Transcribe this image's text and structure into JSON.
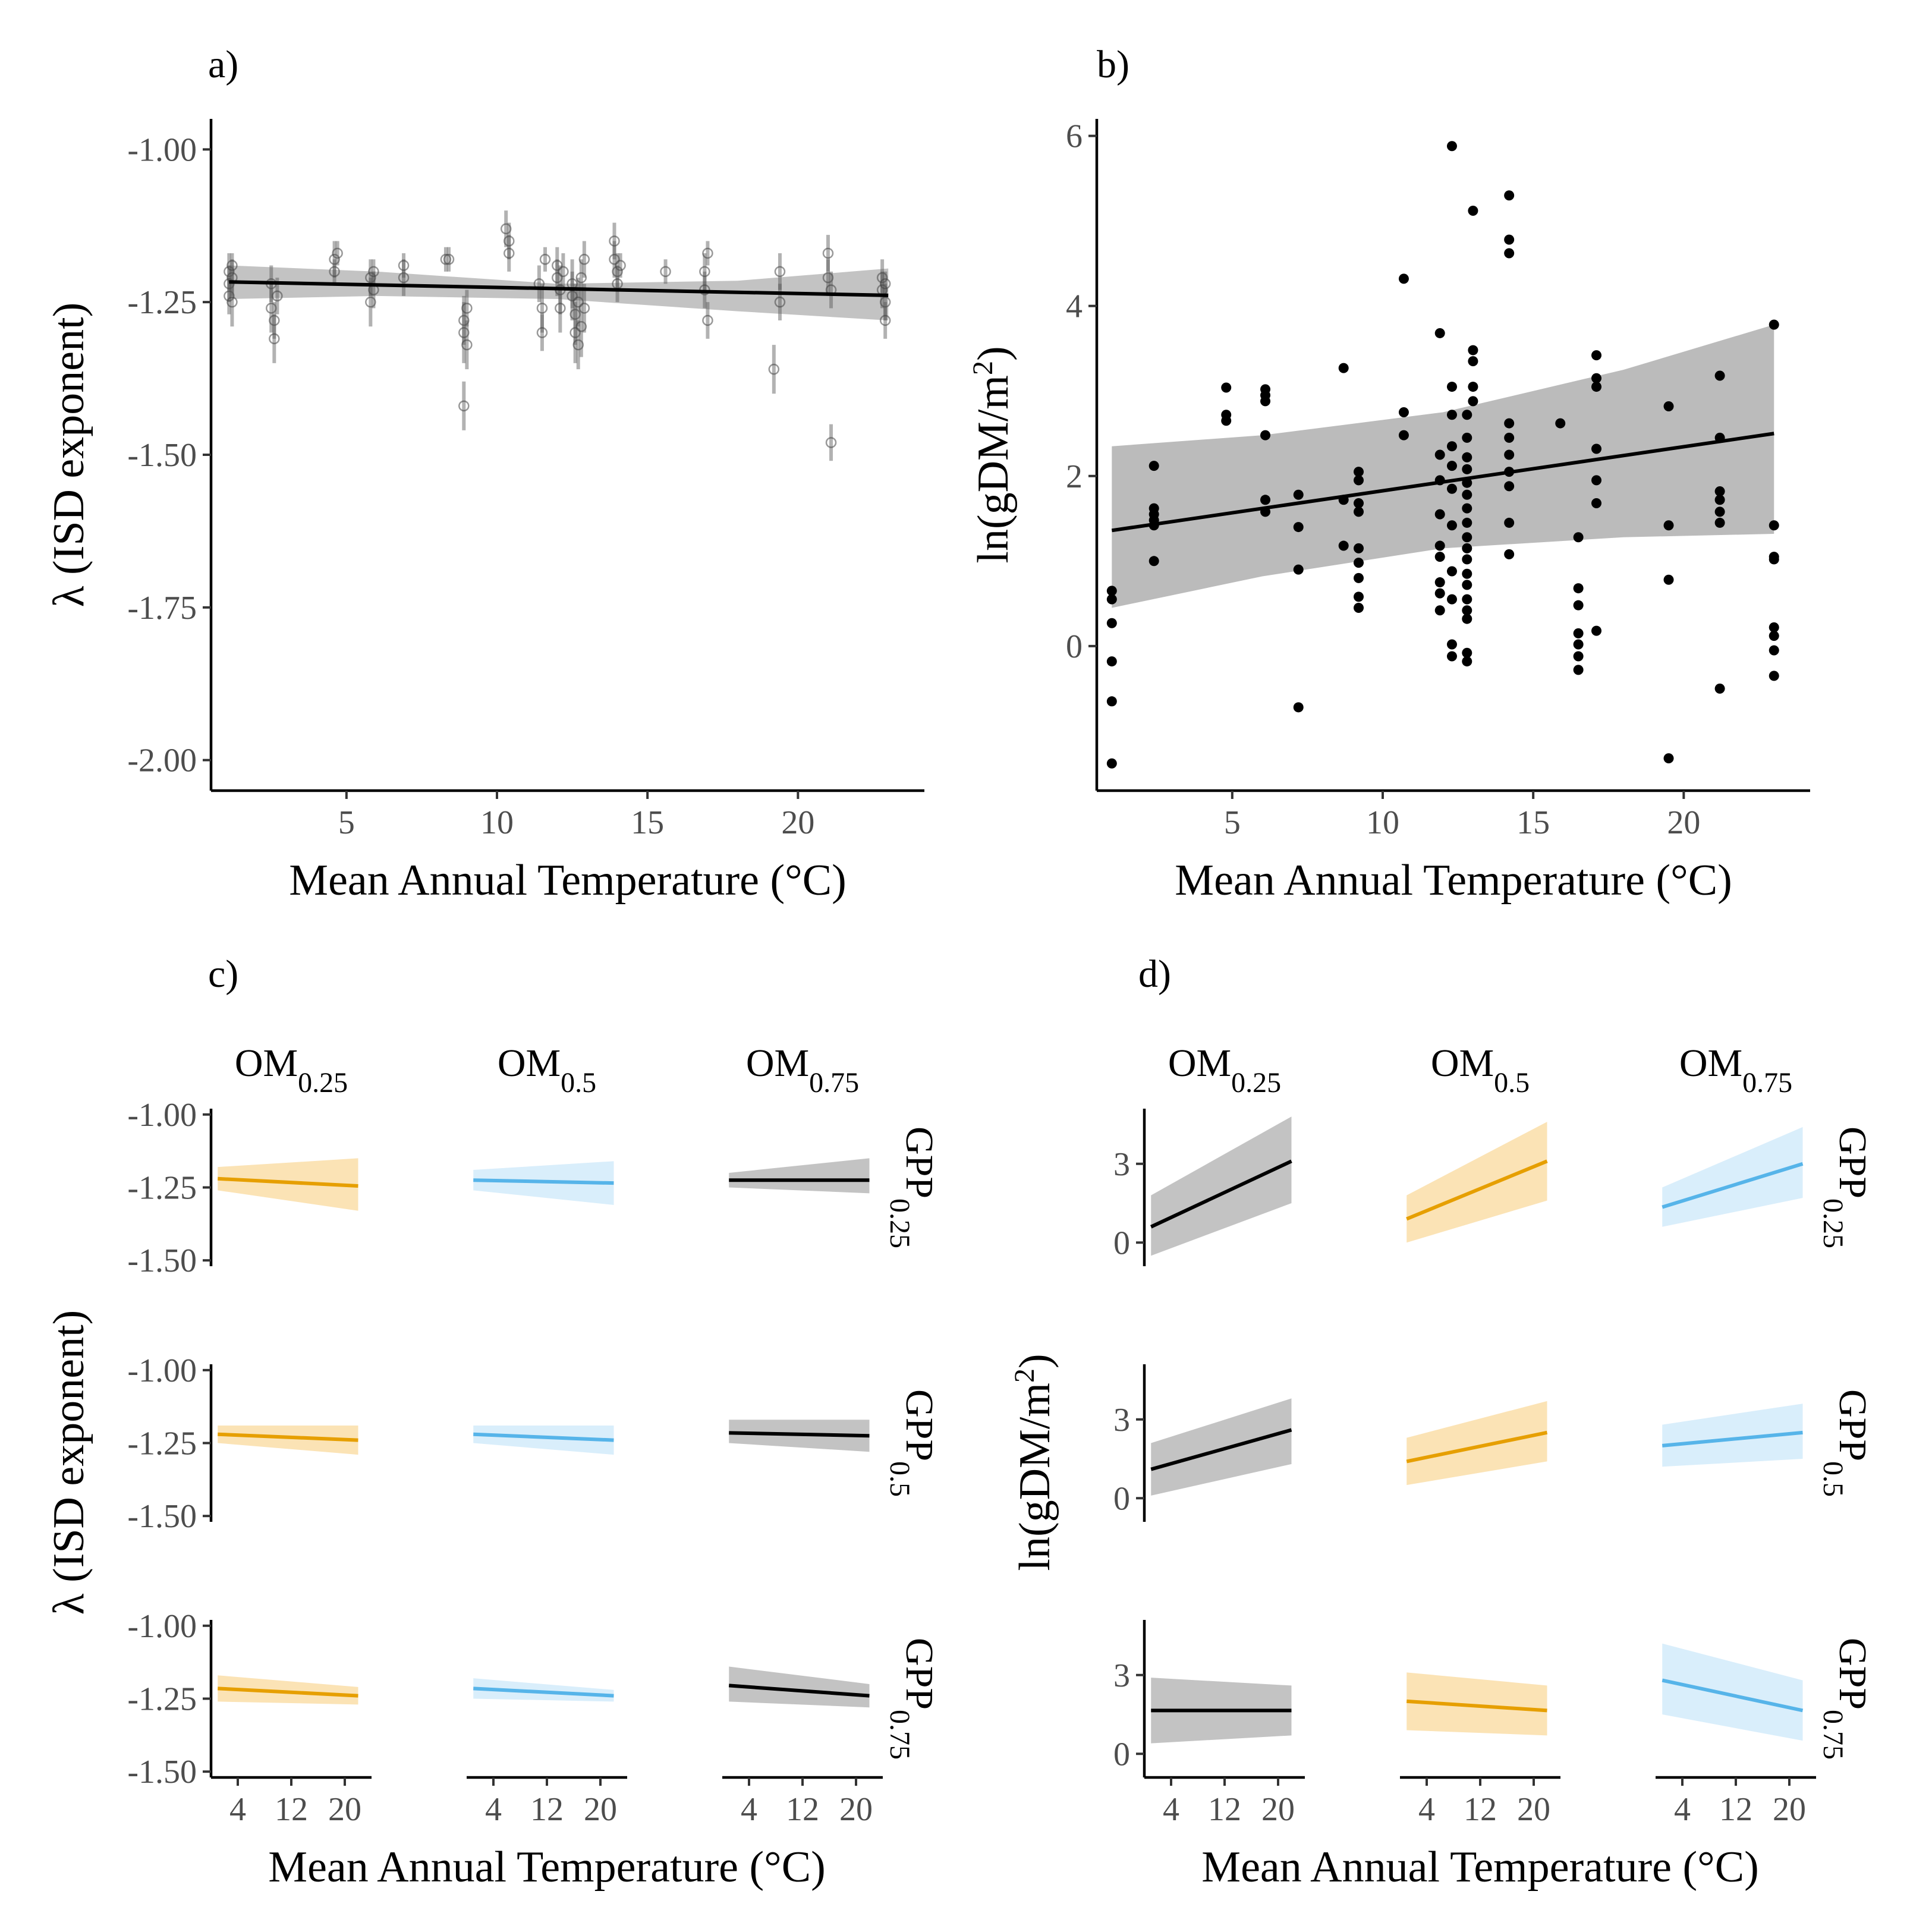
{
  "colors": {
    "black": "#000000",
    "orange": "#E69F00",
    "blue": "#56B4E9",
    "band_a": "#bdbdbd",
    "band_b": "#9e9e9e"
  },
  "panel_labels": [
    "a)",
    "b)",
    "c)",
    "d)"
  ],
  "temp_axis_title": "Mean Annual Temperature (°C)",
  "lambda_axis_title": "λ (ISD exponent)",
  "biomass_axis_title": "ln(gDM/m²)",
  "chart_data": [
    {
      "panel": "a)",
      "type": "scatter",
      "xlabel": "Mean Annual Temperature (°C)",
      "ylabel": "λ (ISD exponent)",
      "xlim": [
        0.5,
        24.2
      ],
      "ylim": [
        -2.05,
        -0.95
      ],
      "x_ticks": [
        5,
        10,
        15,
        20
      ],
      "y_ticks": [
        -1.0,
        -1.25,
        -1.5,
        -1.75,
        -2.0
      ],
      "y_tick_labels": [
        "-1.00",
        "-1.25",
        "-1.50",
        "-1.75",
        "-2.00"
      ],
      "fit_line": [
        [
          1.1,
          -1.217
        ],
        [
          23,
          -1.239
        ]
      ],
      "fit_band": {
        "x": [
          1.1,
          6,
          12,
          18,
          23
        ],
        "lower": [
          -1.245,
          -1.24,
          -1.245,
          -1.265,
          -1.28
        ],
        "upper": [
          -1.19,
          -1.2,
          -1.22,
          -1.215,
          -1.195
        ]
      },
      "points": [
        [
          1.1,
          -1.2,
          0.03
        ],
        [
          1.1,
          -1.22,
          0.03
        ],
        [
          1.1,
          -1.24,
          0.03
        ],
        [
          1.2,
          -1.21,
          0.03
        ],
        [
          1.2,
          -1.25,
          0.04
        ],
        [
          1.2,
          -1.19,
          0.02
        ],
        [
          2.5,
          -1.22,
          0.03
        ],
        [
          2.5,
          -1.26,
          0.04
        ],
        [
          2.6,
          -1.28,
          0.03
        ],
        [
          2.6,
          -1.31,
          0.04
        ],
        [
          2.7,
          -1.24,
          0.03
        ],
        [
          4.6,
          -1.18,
          0.03
        ],
        [
          4.6,
          -1.2,
          0.02
        ],
        [
          4.7,
          -1.17,
          0.02
        ],
        [
          5.8,
          -1.21,
          0.03
        ],
        [
          5.8,
          -1.25,
          0.04
        ],
        [
          5.9,
          -1.23,
          0.03
        ],
        [
          5.9,
          -1.2,
          0.02
        ],
        [
          6.9,
          -1.21,
          0.03
        ],
        [
          6.9,
          -1.19,
          0.02
        ],
        [
          8.3,
          -1.18,
          0.02
        ],
        [
          8.4,
          -1.18,
          0.02
        ],
        [
          8.9,
          -1.28,
          0.04
        ],
        [
          8.9,
          -1.3,
          0.05
        ],
        [
          9.0,
          -1.32,
          0.04
        ],
        [
          8.9,
          -1.42,
          0.04
        ],
        [
          9.0,
          -1.26,
          0.03
        ],
        [
          10.3,
          -1.13,
          0.03
        ],
        [
          10.4,
          -1.15,
          0.03
        ],
        [
          10.4,
          -1.17,
          0.03
        ],
        [
          11.4,
          -1.22,
          0.03
        ],
        [
          11.5,
          -1.26,
          0.04
        ],
        [
          11.5,
          -1.3,
          0.03
        ],
        [
          11.6,
          -1.18,
          0.02
        ],
        [
          12.0,
          -1.19,
          0.03
        ],
        [
          12.0,
          -1.21,
          0.03
        ],
        [
          12.1,
          -1.23,
          0.04
        ],
        [
          12.1,
          -1.26,
          0.04
        ],
        [
          12.2,
          -1.2,
          0.03
        ],
        [
          12.5,
          -1.22,
          0.04
        ],
        [
          12.5,
          -1.24,
          0.04
        ],
        [
          12.6,
          -1.27,
          0.05
        ],
        [
          12.6,
          -1.3,
          0.05
        ],
        [
          12.7,
          -1.32,
          0.04
        ],
        [
          12.7,
          -1.25,
          0.04
        ],
        [
          12.8,
          -1.21,
          0.03
        ],
        [
          12.8,
          -1.29,
          0.05
        ],
        [
          12.9,
          -1.26,
          0.04
        ],
        [
          12.9,
          -1.18,
          0.03
        ],
        [
          13.9,
          -1.15,
          0.03
        ],
        [
          13.9,
          -1.18,
          0.03
        ],
        [
          14.0,
          -1.2,
          0.03
        ],
        [
          14.0,
          -1.22,
          0.03
        ],
        [
          14.1,
          -1.19,
          0.02
        ],
        [
          15.6,
          -1.2,
          0.02
        ],
        [
          16.9,
          -1.2,
          0.03
        ],
        [
          16.9,
          -1.23,
          0.03
        ],
        [
          17.0,
          -1.28,
          0.03
        ],
        [
          17.0,
          -1.17,
          0.02
        ],
        [
          19.2,
          -1.36,
          0.04
        ],
        [
          19.4,
          -1.2,
          0.03
        ],
        [
          19.4,
          -1.25,
          0.03
        ],
        [
          21.0,
          -1.17,
          0.03
        ],
        [
          21.0,
          -1.21,
          0.03
        ],
        [
          21.1,
          -1.48,
          0.03
        ],
        [
          21.1,
          -1.23,
          0.03
        ],
        [
          22.8,
          -1.21,
          0.03
        ],
        [
          22.8,
          -1.23,
          0.03
        ],
        [
          22.9,
          -1.25,
          0.03
        ],
        [
          22.9,
          -1.28,
          0.03
        ],
        [
          22.9,
          -1.22,
          0.02
        ]
      ]
    },
    {
      "panel": "b)",
      "type": "scatter",
      "xlabel": "Mean Annual Temperature (°C)",
      "ylabel": "ln(gDM/m²)",
      "xlim": [
        0.5,
        24.2
      ],
      "ylim": [
        -1.7,
        6.2
      ],
      "x_ticks": [
        5,
        10,
        15,
        20
      ],
      "y_ticks": [
        0,
        2,
        4,
        6
      ],
      "y_tick_labels": [
        "0",
        "2",
        "4",
        "6"
      ],
      "fit_line": [
        [
          1.0,
          1.36
        ],
        [
          23.0,
          2.5
        ]
      ],
      "fit_band": {
        "x": [
          1.0,
          6,
          12,
          18,
          23
        ],
        "lower": [
          0.45,
          0.82,
          1.15,
          1.28,
          1.32
        ],
        "upper": [
          2.35,
          2.48,
          2.75,
          3.25,
          3.78
        ]
      },
      "points": [
        [
          1.0,
          -1.38
        ],
        [
          1.0,
          -0.65
        ],
        [
          1.0,
          -0.18
        ],
        [
          1.0,
          0.27
        ],
        [
          1.0,
          0.55
        ],
        [
          1.0,
          0.65
        ],
        [
          2.4,
          1.0
        ],
        [
          2.4,
          1.42
        ],
        [
          2.4,
          1.48
        ],
        [
          2.4,
          1.55
        ],
        [
          2.4,
          1.62
        ],
        [
          2.4,
          2.12
        ],
        [
          4.8,
          2.65
        ],
        [
          4.8,
          2.72
        ],
        [
          4.8,
          3.04
        ],
        [
          6.1,
          1.58
        ],
        [
          6.1,
          1.72
        ],
        [
          6.1,
          2.48
        ],
        [
          6.1,
          2.88
        ],
        [
          6.1,
          2.95
        ],
        [
          6.1,
          3.02
        ],
        [
          7.2,
          -0.72
        ],
        [
          7.2,
          0.9
        ],
        [
          7.2,
          1.4
        ],
        [
          7.2,
          1.78
        ],
        [
          8.7,
          1.18
        ],
        [
          8.7,
          1.72
        ],
        [
          8.7,
          3.27
        ],
        [
          9.2,
          0.45
        ],
        [
          9.2,
          0.58
        ],
        [
          9.2,
          0.8
        ],
        [
          9.2,
          0.98
        ],
        [
          9.2,
          1.15
        ],
        [
          9.2,
          1.58
        ],
        [
          9.2,
          1.68
        ],
        [
          9.2,
          1.95
        ],
        [
          9.2,
          2.05
        ],
        [
          10.7,
          2.48
        ],
        [
          10.7,
          2.75
        ],
        [
          10.7,
          4.32
        ],
        [
          11.9,
          0.42
        ],
        [
          11.9,
          0.62
        ],
        [
          11.9,
          0.75
        ],
        [
          11.9,
          1.05
        ],
        [
          11.9,
          1.18
        ],
        [
          11.9,
          1.55
        ],
        [
          11.9,
          1.95
        ],
        [
          11.9,
          2.25
        ],
        [
          11.9,
          3.68
        ],
        [
          12.3,
          -0.12
        ],
        [
          12.3,
          0.02
        ],
        [
          12.3,
          0.55
        ],
        [
          12.3,
          0.88
        ],
        [
          12.3,
          1.42
        ],
        [
          12.3,
          1.85
        ],
        [
          12.3,
          2.12
        ],
        [
          12.3,
          2.35
        ],
        [
          12.3,
          2.72
        ],
        [
          12.3,
          3.05
        ],
        [
          12.3,
          5.88
        ],
        [
          12.8,
          -0.18
        ],
        [
          12.8,
          -0.08
        ],
        [
          12.8,
          0.32
        ],
        [
          12.8,
          0.42
        ],
        [
          12.8,
          0.55
        ],
        [
          12.8,
          0.72
        ],
        [
          12.8,
          0.85
        ],
        [
          12.8,
          1.02
        ],
        [
          12.8,
          1.15
        ],
        [
          12.8,
          1.28
        ],
        [
          12.8,
          1.45
        ],
        [
          12.8,
          1.62
        ],
        [
          12.8,
          1.78
        ],
        [
          12.8,
          1.92
        ],
        [
          12.8,
          2.08
        ],
        [
          12.8,
          2.22
        ],
        [
          12.8,
          2.45
        ],
        [
          12.8,
          2.72
        ],
        [
          13.0,
          2.88
        ],
        [
          13.0,
          3.05
        ],
        [
          13.0,
          3.35
        ],
        [
          13.0,
          3.48
        ],
        [
          13.0,
          5.12
        ],
        [
          14.2,
          1.08
        ],
        [
          14.2,
          1.45
        ],
        [
          14.2,
          1.88
        ],
        [
          14.2,
          2.05
        ],
        [
          14.2,
          2.25
        ],
        [
          14.2,
          2.45
        ],
        [
          14.2,
          2.62
        ],
        [
          14.2,
          4.62
        ],
        [
          14.2,
          4.78
        ],
        [
          14.2,
          5.3
        ],
        [
          15.9,
          2.62
        ],
        [
          16.5,
          -0.28
        ],
        [
          16.5,
          -0.12
        ],
        [
          16.5,
          0.02
        ],
        [
          16.5,
          0.15
        ],
        [
          16.5,
          0.48
        ],
        [
          16.5,
          0.68
        ],
        [
          16.5,
          1.28
        ],
        [
          17.1,
          0.18
        ],
        [
          17.1,
          1.68
        ],
        [
          17.1,
          1.95
        ],
        [
          17.1,
          2.32
        ],
        [
          17.1,
          3.05
        ],
        [
          17.1,
          3.15
        ],
        [
          17.1,
          3.42
        ],
        [
          19.5,
          -1.32
        ],
        [
          19.5,
          0.78
        ],
        [
          19.5,
          1.42
        ],
        [
          19.5,
          2.82
        ],
        [
          21.2,
          -0.5
        ],
        [
          21.2,
          1.45
        ],
        [
          21.2,
          1.58
        ],
        [
          21.2,
          1.72
        ],
        [
          21.2,
          1.82
        ],
        [
          21.2,
          2.45
        ],
        [
          21.2,
          3.18
        ],
        [
          23.0,
          -0.35
        ],
        [
          23.0,
          -0.05
        ],
        [
          23.0,
          0.12
        ],
        [
          23.0,
          0.22
        ],
        [
          23.0,
          1.02
        ],
        [
          23.0,
          1.05
        ],
        [
          23.0,
          1.42
        ],
        [
          23.0,
          3.78
        ]
      ]
    },
    {
      "panel": "c)",
      "type": "line",
      "xlabel": "Mean Annual Temperature (°C)",
      "ylabel": "λ (ISD exponent)",
      "xlim": [
        0,
        24
      ],
      "ylim": [
        -1.52,
        -0.98
      ],
      "x_ticks": [
        4,
        12,
        20
      ],
      "y_ticks": [
        -1.0,
        -1.25,
        -1.5
      ],
      "y_tick_labels": [
        "-1.00",
        "-1.25",
        "-1.50"
      ],
      "columns": [
        "OM0.25",
        "OM0.5",
        "OM0.75"
      ],
      "rows": [
        "GPP0.25",
        "GPP0.5",
        "GPP0.75"
      ],
      "column_colors": [
        "#E69F00",
        "#56B4E9",
        "#000000"
      ],
      "x": [
        1,
        22
      ],
      "cells": [
        [
          {
            "fit": [
              -1.22,
              -1.245
            ],
            "lower": [
              -1.26,
              -1.33
            ],
            "upper": [
              -1.18,
              -1.15
            ]
          },
          {
            "fit": [
              -1.225,
              -1.235
            ],
            "lower": [
              -1.26,
              -1.31
            ],
            "upper": [
              -1.19,
              -1.16
            ]
          },
          {
            "fit": [
              -1.225,
              -1.225
            ],
            "lower": [
              -1.25,
              -1.27
            ],
            "upper": [
              -1.2,
              -1.15
            ]
          }
        ],
        [
          {
            "fit": [
              -1.22,
              -1.24
            ],
            "lower": [
              -1.25,
              -1.29
            ],
            "upper": [
              -1.19,
              -1.19
            ]
          },
          {
            "fit": [
              -1.22,
              -1.24
            ],
            "lower": [
              -1.25,
              -1.29
            ],
            "upper": [
              -1.19,
              -1.19
            ]
          },
          {
            "fit": [
              -1.215,
              -1.225
            ],
            "lower": [
              -1.25,
              -1.28
            ],
            "upper": [
              -1.17,
              -1.17
            ]
          }
        ],
        [
          {
            "fit": [
              -1.215,
              -1.24
            ],
            "lower": [
              -1.26,
              -1.27
            ],
            "upper": [
              -1.17,
              -1.21
            ]
          },
          {
            "fit": [
              -1.215,
              -1.24
            ],
            "lower": [
              -1.25,
              -1.26
            ],
            "upper": [
              -1.18,
              -1.22
            ]
          },
          {
            "fit": [
              -1.205,
              -1.24
            ],
            "lower": [
              -1.26,
              -1.28
            ],
            "upper": [
              -1.14,
              -1.2
            ]
          }
        ]
      ]
    },
    {
      "panel": "d)",
      "type": "line",
      "xlabel": "Mean Annual Temperature (°C)",
      "ylabel": "ln(gDM/m²)",
      "xlim": [
        0,
        24
      ],
      "ylim": [
        -0.9,
        5.1
      ],
      "x_ticks": [
        4,
        12,
        20
      ],
      "y_ticks": [
        0,
        3
      ],
      "y_tick_labels": [
        "0",
        "3"
      ],
      "columns": [
        "OM0.25",
        "OM0.5",
        "OM0.75"
      ],
      "rows": [
        "GPP0.25",
        "GPP0.5",
        "GPP0.75"
      ],
      "column_colors": [
        "#000000",
        "#E69F00",
        "#56B4E9"
      ],
      "x": [
        1,
        22
      ],
      "cells": [
        [
          {
            "fit": [
              0.6,
              3.1
            ],
            "lower": [
              -0.5,
              1.5
            ],
            "upper": [
              1.8,
              4.8
            ]
          },
          {
            "fit": [
              0.9,
              3.1
            ],
            "lower": [
              0.0,
              1.6
            ],
            "upper": [
              1.8,
              4.6
            ]
          },
          {
            "fit": [
              1.35,
              3.0
            ],
            "lower": [
              0.6,
              1.7
            ],
            "upper": [
              2.1,
              4.4
            ]
          }
        ],
        [
          {
            "fit": [
              1.1,
              2.6
            ],
            "lower": [
              0.1,
              1.3
            ],
            "upper": [
              2.1,
              3.8
            ]
          },
          {
            "fit": [
              1.4,
              2.5
            ],
            "lower": [
              0.5,
              1.4
            ],
            "upper": [
              2.3,
              3.7
            ]
          },
          {
            "fit": [
              2.0,
              2.5
            ],
            "lower": [
              1.2,
              1.5
            ],
            "upper": [
              2.8,
              3.6
            ]
          }
        ],
        [
          {
            "fit": [
              1.65,
              1.65
            ],
            "lower": [
              0.4,
              0.7
            ],
            "upper": [
              2.9,
              2.6
            ]
          },
          {
            "fit": [
              2.0,
              1.65
            ],
            "lower": [
              0.9,
              0.7
            ],
            "upper": [
              3.1,
              2.6
            ]
          },
          {
            "fit": [
              2.8,
              1.65
            ],
            "lower": [
              1.5,
              0.5
            ],
            "upper": [
              4.2,
              2.8
            ]
          }
        ]
      ]
    }
  ]
}
